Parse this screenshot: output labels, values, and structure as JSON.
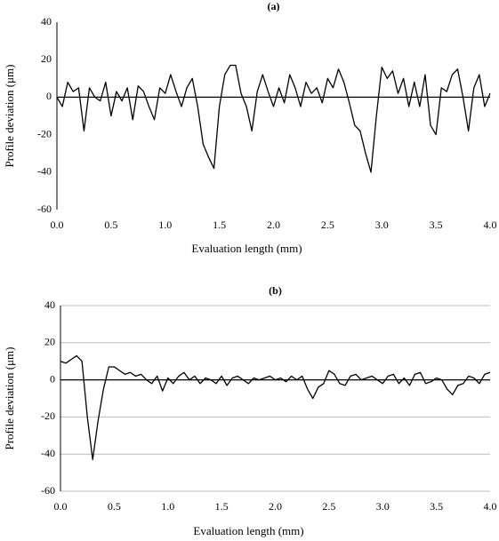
{
  "chart_data": [
    {
      "type": "line",
      "title": "(a)",
      "x_label": "Evaluation length (mm)",
      "y_label": "Profile deviation  (μm)",
      "x": [
        0,
        0.05,
        0.1,
        0.15,
        0.2,
        0.25,
        0.3,
        0.35,
        0.4,
        0.45,
        0.5,
        0.55,
        0.6,
        0.65,
        0.7,
        0.75,
        0.8,
        0.85,
        0.9,
        0.95,
        1,
        1.05,
        1.1,
        1.15,
        1.2,
        1.25,
        1.3,
        1.35,
        1.4,
        1.45,
        1.5,
        1.55,
        1.6,
        1.65,
        1.7,
        1.75,
        1.8,
        1.85,
        1.9,
        1.95,
        2,
        2.05,
        2.1,
        2.15,
        2.2,
        2.25,
        2.3,
        2.35,
        2.4,
        2.45,
        2.5,
        2.55,
        2.6,
        2.65,
        2.7,
        2.75,
        2.8,
        2.85,
        2.9,
        2.95,
        3,
        3.05,
        3.1,
        3.15,
        3.2,
        3.25,
        3.3,
        3.35,
        3.4,
        3.45,
        3.5,
        3.55,
        3.6,
        3.65,
        3.7,
        3.75,
        3.8,
        3.85,
        3.9,
        3.95,
        4
      ],
      "series": [
        {
          "color": "#000000",
          "values": [
            0,
            -5,
            8,
            3,
            5,
            -18,
            5,
            0,
            -2,
            8,
            -10,
            3,
            -2,
            5,
            -12,
            6,
            3,
            -5,
            -12,
            5,
            2,
            12,
            3,
            -5,
            5,
            10,
            -5,
            -25,
            -32,
            -38,
            -5,
            12,
            17,
            17,
            2,
            -5,
            -18,
            3,
            12,
            3,
            -5,
            5,
            -3,
            12,
            5,
            -5,
            8,
            2,
            5,
            -3,
            10,
            5,
            15,
            8,
            -3,
            -15,
            -18,
            -30,
            -40,
            -10,
            16,
            10,
            14,
            2,
            10,
            -5,
            8,
            -5,
            12,
            -15,
            -20,
            5,
            3,
            12,
            15,
            0,
            -18,
            5,
            12,
            -5,
            2
          ]
        }
      ],
      "xlim": [
        0,
        4
      ],
      "ylim": [
        -60,
        40
      ],
      "xticks": [
        {
          "value": 0,
          "label": "0.0"
        },
        {
          "value": 0.5,
          "label": "0.5"
        },
        {
          "value": 1,
          "label": "1.0"
        },
        {
          "value": 1.5,
          "label": "1.5"
        },
        {
          "value": 2,
          "label": "2.0"
        },
        {
          "value": 2.5,
          "label": "2.5"
        },
        {
          "value": 3,
          "label": "3.0"
        },
        {
          "value": 3.5,
          "label": "3.5"
        },
        {
          "value": 4,
          "label": "4.0"
        }
      ],
      "yticks": [
        40,
        20,
        0,
        -20,
        -40,
        -60
      ],
      "grid": false
    },
    {
      "type": "line",
      "title": "(b)",
      "x_label": "Evaluation length (mm)",
      "y_label": "Profile deviation (μm)",
      "x": [
        0,
        0.05,
        0.1,
        0.15,
        0.2,
        0.25,
        0.3,
        0.35,
        0.4,
        0.45,
        0.5,
        0.55,
        0.6,
        0.65,
        0.7,
        0.75,
        0.8,
        0.85,
        0.9,
        0.95,
        1,
        1.05,
        1.1,
        1.15,
        1.2,
        1.25,
        1.3,
        1.35,
        1.4,
        1.45,
        1.5,
        1.55,
        1.6,
        1.65,
        1.7,
        1.75,
        1.8,
        1.85,
        1.9,
        1.95,
        2,
        2.05,
        2.1,
        2.15,
        2.2,
        2.25,
        2.3,
        2.35,
        2.4,
        2.45,
        2.5,
        2.55,
        2.6,
        2.65,
        2.7,
        2.75,
        2.8,
        2.85,
        2.9,
        2.95,
        3,
        3.05,
        3.1,
        3.15,
        3.2,
        3.25,
        3.3,
        3.35,
        3.4,
        3.45,
        3.5,
        3.55,
        3.6,
        3.65,
        3.7,
        3.75,
        3.8,
        3.85,
        3.9,
        3.95,
        4
      ],
      "series": [
        {
          "color": "#000000",
          "values": [
            10,
            9,
            11,
            13,
            10,
            -20,
            -43,
            -22,
            -5,
            7,
            7,
            5,
            3,
            4,
            2,
            3,
            0,
            -2,
            2,
            -6,
            1,
            -2,
            2,
            4,
            0,
            2,
            -2,
            1,
            0,
            -2,
            2,
            -3,
            1,
            2,
            0,
            -2,
            1,
            0,
            1,
            2,
            0,
            1,
            -1,
            2,
            0,
            2,
            -5,
            -10,
            -4,
            -2,
            5,
            3,
            -2,
            -3,
            2,
            3,
            0,
            1,
            2,
            0,
            -2,
            2,
            3,
            -2,
            1,
            -3,
            3,
            4,
            -2,
            -1,
            1,
            0,
            -5,
            -8,
            -3,
            -2,
            2,
            1,
            -2,
            3,
            4
          ]
        }
      ],
      "xlim": [
        0,
        4
      ],
      "ylim": [
        -60,
        40
      ],
      "xticks": [
        {
          "value": 0,
          "label": "0.0"
        },
        {
          "value": 0.5,
          "label": "0.5"
        },
        {
          "value": 1,
          "label": "1.0"
        },
        {
          "value": 1.5,
          "label": "1.5"
        },
        {
          "value": 2,
          "label": "2.0"
        },
        {
          "value": 2.5,
          "label": "2.5"
        },
        {
          "value": 3,
          "label": "3.0"
        },
        {
          "value": 3.5,
          "label": "3.5"
        },
        {
          "value": 4,
          "label": "4.0"
        }
      ],
      "yticks": [
        40,
        20,
        0,
        -20,
        -40,
        -60
      ],
      "grid": true
    }
  ]
}
